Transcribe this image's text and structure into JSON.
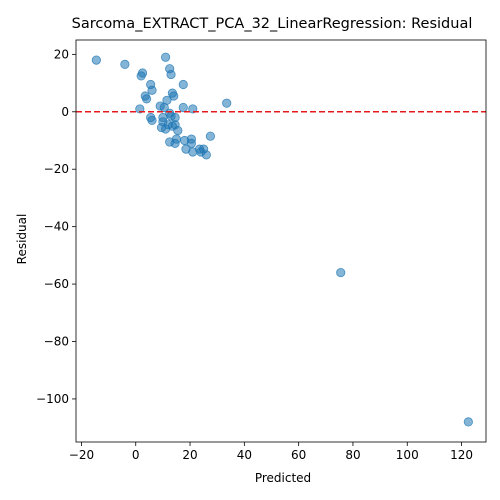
{
  "chart_data": {
    "type": "scatter",
    "title": "Sarcoma_EXTRACT_PCA_32_LinearRegression: Residual",
    "xlabel": "Predicted",
    "ylabel": "Residual",
    "xlim": [
      -22,
      129
    ],
    "ylim": [
      -115,
      25
    ],
    "xticks": [
      -20,
      0,
      20,
      40,
      60,
      80,
      100,
      120
    ],
    "yticks": [
      20,
      0,
      -20,
      -40,
      -60,
      -80,
      -100
    ],
    "xtick_labels": [
      "−20",
      "0",
      "20",
      "40",
      "60",
      "80",
      "100",
      "120"
    ],
    "ytick_labels": [
      "20",
      "0",
      "−20",
      "−40",
      "−60",
      "−80",
      "−100"
    ],
    "reference_line": {
      "y": 0,
      "style": "dashed",
      "color": "#e41a1c"
    },
    "point_color": "#1f77b4",
    "grid": false,
    "legend": "none",
    "points": [
      {
        "x": -14.5,
        "y": 18.0
      },
      {
        "x": -4.0,
        "y": 16.5
      },
      {
        "x": 2.5,
        "y": 13.5
      },
      {
        "x": 2.0,
        "y": 12.5
      },
      {
        "x": 11.0,
        "y": 19.0
      },
      {
        "x": 12.5,
        "y": 15.0
      },
      {
        "x": 13.0,
        "y": 13.0
      },
      {
        "x": 17.5,
        "y": 9.5
      },
      {
        "x": 5.5,
        "y": 9.5
      },
      {
        "x": 6.0,
        "y": 7.5
      },
      {
        "x": 13.5,
        "y": 6.5
      },
      {
        "x": 14.0,
        "y": 5.5
      },
      {
        "x": 3.5,
        "y": 5.5
      },
      {
        "x": 4.0,
        "y": 4.5
      },
      {
        "x": 11.5,
        "y": 4.0
      },
      {
        "x": 33.5,
        "y": 3.0
      },
      {
        "x": 9.0,
        "y": 2.0
      },
      {
        "x": 10.5,
        "y": 1.5
      },
      {
        "x": 17.5,
        "y": 1.5
      },
      {
        "x": 21.0,
        "y": 1.0
      },
      {
        "x": 1.5,
        "y": 1.0
      },
      {
        "x": 12.5,
        "y": -0.5
      },
      {
        "x": 13.0,
        "y": -1.5
      },
      {
        "x": 5.5,
        "y": -2.0
      },
      {
        "x": 10.0,
        "y": -2.0
      },
      {
        "x": 14.5,
        "y": -2.0
      },
      {
        "x": 6.0,
        "y": -3.0
      },
      {
        "x": 10.0,
        "y": -3.5
      },
      {
        "x": 12.0,
        "y": -4.5
      },
      {
        "x": 14.5,
        "y": -4.5
      },
      {
        "x": 9.5,
        "y": -5.5
      },
      {
        "x": 13.5,
        "y": -5.0
      },
      {
        "x": 11.0,
        "y": -6.0
      },
      {
        "x": 15.5,
        "y": -6.5
      },
      {
        "x": 27.5,
        "y": -8.5
      },
      {
        "x": 15.0,
        "y": -9.5
      },
      {
        "x": 20.5,
        "y": -9.5
      },
      {
        "x": 18.0,
        "y": -10.0
      },
      {
        "x": 12.5,
        "y": -10.5
      },
      {
        "x": 14.5,
        "y": -11.0
      },
      {
        "x": 20.5,
        "y": -11.0
      },
      {
        "x": 23.5,
        "y": -13.0
      },
      {
        "x": 25.0,
        "y": -13.0
      },
      {
        "x": 18.5,
        "y": -13.0
      },
      {
        "x": 24.0,
        "y": -14.0
      },
      {
        "x": 21.0,
        "y": -14.0
      },
      {
        "x": 26.0,
        "y": -15.0
      },
      {
        "x": 75.5,
        "y": -56.0
      },
      {
        "x": 122.5,
        "y": -108.0
      }
    ]
  }
}
